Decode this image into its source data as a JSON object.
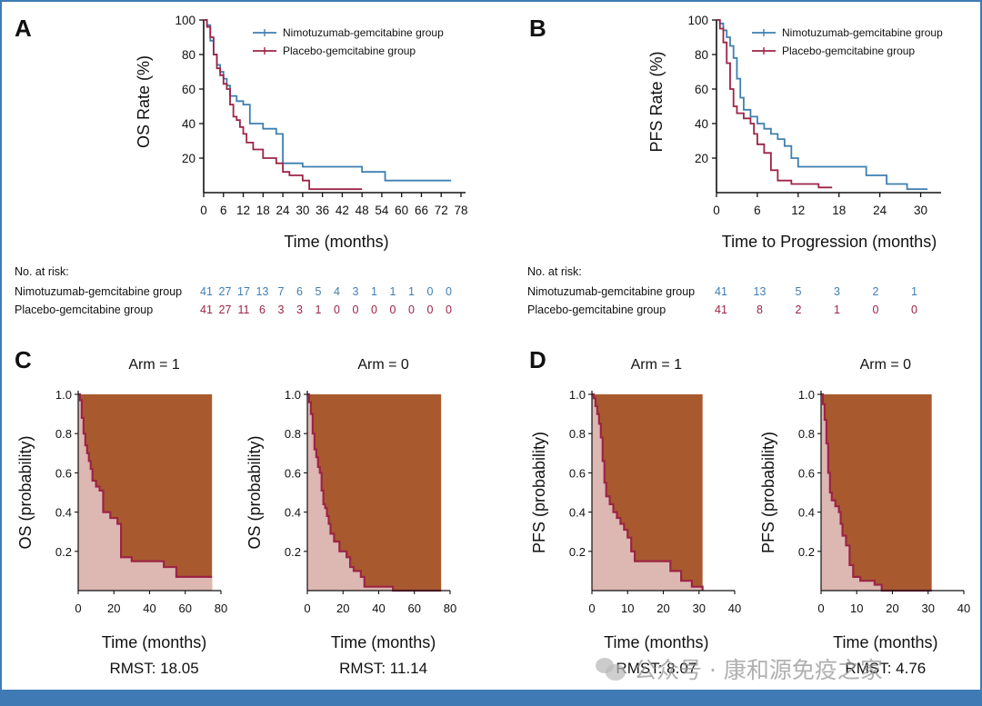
{
  "panels": {
    "A": {
      "letter": "A",
      "xlabel": "Time (months)",
      "ylabel": "OS Rate (%)",
      "xticks": [
        0,
        6,
        12,
        18,
        24,
        30,
        36,
        42,
        48,
        54,
        60,
        66,
        72,
        78
      ],
      "yticks": [
        20,
        40,
        60,
        80,
        100
      ],
      "legend": [
        "Nimotuzumab-gemcitabine group",
        "Placebo-gemcitabine group"
      ]
    },
    "B": {
      "letter": "B",
      "xlabel": "Time to Progression (months)",
      "ylabel": "PFS Rate (%)",
      "xticks": [
        0,
        6,
        12,
        18,
        24,
        30
      ],
      "yticks": [
        20,
        40,
        60,
        80,
        100
      ],
      "legend": [
        "Nimotuzumab-gemcitabine group",
        "Placebo-gemcitabine group"
      ]
    },
    "C": {
      "letter": "C"
    },
    "D": {
      "letter": "D"
    }
  },
  "risk_tables": {
    "A": {
      "title": "No. at risk:",
      "rows": [
        {
          "label": "Nimotuzumab-gemcitabine group",
          "values": [
            "41",
            "27",
            "17",
            "13",
            "7",
            "6",
            "5",
            "4",
            "3",
            "1",
            "1",
            "1",
            "0",
            "0"
          ]
        },
        {
          "label": "Placebo-gemcitabine group",
          "values": [
            "41",
            "27",
            "11",
            "6",
            "3",
            "3",
            "1",
            "0",
            "0",
            "0",
            "0",
            "0",
            "0",
            "0"
          ]
        }
      ]
    },
    "B": {
      "title": "No. at risk:",
      "rows": [
        {
          "label": "Nimotuzumab-gemcitabine group",
          "values": [
            "41",
            "13",
            "5",
            "3",
            "2",
            "1"
          ]
        },
        {
          "label": "Placebo-gemcitabine group",
          "values": [
            "41",
            "8",
            "2",
            "1",
            "0",
            "0"
          ]
        }
      ]
    }
  },
  "rmst_plots": [
    {
      "panel": "C",
      "title": "Arm = 1",
      "ylabel": "OS (probability)",
      "xlabel": "Time (months)",
      "rmst": "RMST: 18.05"
    },
    {
      "panel": "C",
      "title": "Arm = 0",
      "ylabel": "OS (probability)",
      "xlabel": "Time (months)",
      "rmst": "RMST: 11.14"
    },
    {
      "panel": "D",
      "title": "Arm = 1",
      "ylabel": "PFS (probability)",
      "xlabel": "Time (months)",
      "rmst": "RMST: 8.07"
    },
    {
      "panel": "D",
      "title": "Arm = 0",
      "ylabel": "PFS (probability)",
      "xlabel": "Time (months)",
      "rmst": "RMST: 4.76"
    }
  ],
  "rmst_axes": {
    "OS": {
      "xticks": [
        0,
        20,
        40,
        60,
        80
      ],
      "yticks": [
        "0.2",
        "0.4",
        "0.6",
        "0.8",
        "1.0"
      ]
    },
    "PFS": {
      "xticks": [
        0,
        10,
        20,
        30,
        40
      ],
      "yticks": [
        "0.2",
        "0.4",
        "0.6",
        "0.8",
        "1.0"
      ]
    }
  },
  "watermark": "公众号 · 康和源免疫之家",
  "colors": {
    "nimotuzumab": "#3f7fb0",
    "placebo": "#9c2445",
    "rmst_area": "#a85a2e",
    "rmst_fill": "#ddb7b1",
    "rmst_line": "#9c2445",
    "frame": "#3f7ab5"
  },
  "chart_data": [
    {
      "type": "line",
      "panel": "A",
      "xlabel": "Time (months)",
      "ylabel": "OS Rate (%)",
      "xlim": [
        0,
        78
      ],
      "ylim": [
        0,
        100
      ],
      "series": [
        {
          "name": "Nimotuzumab-gemcitabine group",
          "step": true,
          "x": [
            0,
            1,
            2,
            3,
            4,
            5,
            6,
            7,
            8,
            10,
            12,
            14,
            18,
            22,
            24,
            30,
            36,
            48,
            55,
            75
          ],
          "y": [
            100,
            97,
            88,
            80,
            74,
            70,
            66,
            62,
            56,
            53,
            51,
            40,
            37,
            34,
            17,
            15,
            15,
            12,
            7,
            7
          ]
        },
        {
          "name": "Placebo-gemcitabine group",
          "step": true,
          "x": [
            0,
            1,
            2,
            3,
            4,
            5,
            6,
            7,
            8,
            9,
            10,
            11,
            12,
            13,
            15,
            18,
            22,
            24,
            26,
            30,
            32,
            48
          ],
          "y": [
            100,
            96,
            90,
            80,
            72,
            68,
            63,
            60,
            51,
            44,
            42,
            38,
            34,
            29,
            25,
            20,
            17,
            12,
            10,
            7,
            2,
            2
          ]
        }
      ]
    },
    {
      "type": "line",
      "panel": "B",
      "xlabel": "Time to Progression (months)",
      "ylabel": "PFS Rate (%)",
      "xlim": [
        0,
        33
      ],
      "ylim": [
        0,
        100
      ],
      "series": [
        {
          "name": "Nimotuzumab-gemcitabine group",
          "step": true,
          "x": [
            0,
            0.5,
            1,
            1.5,
            2,
            2.5,
            3,
            3.5,
            4,
            5,
            6,
            7,
            8,
            9,
            10,
            11,
            12,
            15,
            17,
            22,
            25,
            28,
            31
          ],
          "y": [
            100,
            98,
            94,
            90,
            85,
            78,
            66,
            55,
            48,
            44,
            40,
            37,
            34,
            31,
            27,
            20,
            15,
            15,
            15,
            10,
            5,
            2,
            2
          ]
        },
        {
          "name": "Placebo-gemcitabine group",
          "step": true,
          "x": [
            0,
            0.5,
            1,
            1.5,
            2,
            2.5,
            3,
            4,
            5,
            5.5,
            6,
            7,
            8,
            9,
            11,
            15,
            17
          ],
          "y": [
            100,
            95,
            87,
            75,
            60,
            50,
            46,
            43,
            40,
            34,
            28,
            23,
            13,
            7,
            5,
            3,
            3
          ]
        }
      ]
    },
    {
      "type": "area",
      "panel": "C",
      "title": "Arm = 1",
      "xlabel": "Time (months)",
      "ylabel": "OS (probability)",
      "xlim": [
        0,
        80
      ],
      "ylim": [
        0,
        1
      ],
      "step": true,
      "x": [
        0,
        1,
        2,
        3,
        4,
        5,
        6,
        7,
        8,
        10,
        12,
        14,
        18,
        22,
        24,
        30,
        36,
        48,
        55,
        75
      ],
      "y": [
        1.0,
        0.97,
        0.88,
        0.8,
        0.74,
        0.7,
        0.66,
        0.62,
        0.56,
        0.53,
        0.51,
        0.4,
        0.37,
        0.34,
        0.17,
        0.15,
        0.15,
        0.12,
        0.07,
        0.07
      ],
      "rmst": 18.05
    },
    {
      "type": "area",
      "panel": "C",
      "title": "Arm = 0",
      "xlabel": "Time (months)",
      "ylabel": "OS (probability)",
      "xlim": [
        0,
        80
      ],
      "ylim": [
        0,
        1
      ],
      "step": true,
      "x": [
        0,
        1,
        2,
        3,
        4,
        5,
        6,
        7,
        8,
        9,
        10,
        11,
        12,
        13,
        15,
        18,
        22,
        24,
        26,
        30,
        32,
        48
      ],
      "y": [
        1.0,
        0.96,
        0.9,
        0.8,
        0.72,
        0.68,
        0.63,
        0.6,
        0.51,
        0.44,
        0.42,
        0.38,
        0.34,
        0.29,
        0.25,
        0.2,
        0.17,
        0.12,
        0.1,
        0.07,
        0.02,
        0.0
      ],
      "rmst": 11.14
    },
    {
      "type": "area",
      "panel": "D",
      "title": "Arm = 1",
      "xlabel": "Time (months)",
      "ylabel": "PFS (probability)",
      "xlim": [
        0,
        40
      ],
      "ylim": [
        0,
        1
      ],
      "step": true,
      "x": [
        0,
        0.5,
        1,
        1.5,
        2,
        2.5,
        3,
        3.5,
        4,
        5,
        6,
        7,
        8,
        9,
        10,
        11,
        12,
        15,
        17,
        22,
        25,
        28,
        31
      ],
      "y": [
        1.0,
        0.98,
        0.94,
        0.9,
        0.85,
        0.78,
        0.66,
        0.55,
        0.48,
        0.44,
        0.4,
        0.37,
        0.34,
        0.31,
        0.27,
        0.2,
        0.15,
        0.15,
        0.15,
        0.1,
        0.05,
        0.02,
        0.0
      ],
      "rmst": 8.07
    },
    {
      "type": "area",
      "panel": "D",
      "title": "Arm = 0",
      "xlabel": "Time (months)",
      "ylabel": "PFS (probability)",
      "xlim": [
        0,
        40
      ],
      "ylim": [
        0,
        1
      ],
      "step": true,
      "x": [
        0,
        0.5,
        1,
        1.5,
        2,
        2.5,
        3,
        4,
        5,
        5.5,
        6,
        7,
        8,
        9,
        11,
        15,
        17
      ],
      "y": [
        1.0,
        0.95,
        0.87,
        0.75,
        0.6,
        0.5,
        0.46,
        0.43,
        0.4,
        0.34,
        0.28,
        0.23,
        0.13,
        0.07,
        0.05,
        0.03,
        0.0
      ],
      "rmst": 4.76
    }
  ]
}
